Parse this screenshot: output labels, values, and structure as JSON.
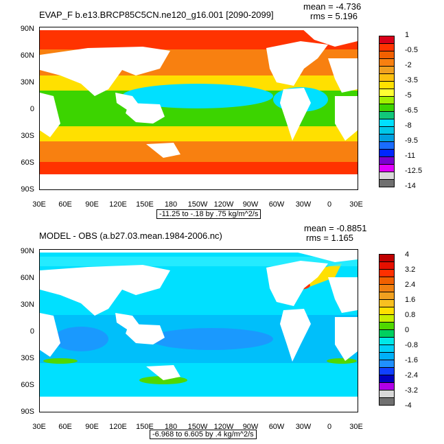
{
  "panels": [
    {
      "title": "EVAP_F b.e13.BRCP85C5CN.ne120_g16.001 [2090-2099]",
      "mean": "mean = -4.736",
      "rms": "rms = 5.196",
      "info": "-11.25 to -.18 by .75 kg/m^2/s",
      "lat_ticks": [
        "90N",
        "60N",
        "30N",
        "0",
        "30S",
        "60S",
        "90S"
      ],
      "lon_ticks": [
        "30E",
        "60E",
        "90E",
        "120E",
        "150E",
        "180",
        "150W",
        "120W",
        "90W",
        "60W",
        "30W",
        "0",
        "30E"
      ],
      "colorbar_labels": [
        "1",
        "-0.5",
        "-2",
        "-3.5",
        "-5",
        "-6.5",
        "-8",
        "-9.5",
        "-11",
        "-12.5",
        "-14"
      ],
      "colorbar_colors": [
        "#d9001a",
        "#ff3300",
        "#f26000",
        "#f88010",
        "#f0a020",
        "#fcc010",
        "#ffe000",
        "#ffff33",
        "#9fef00",
        "#3cd400",
        "#11c77a",
        "#00e0ff",
        "#00c8e8",
        "#00a0e0",
        "#1a6cff",
        "#0026ff",
        "#7a00d0",
        "#e000ff",
        "#d9d9d9",
        "#6f6f6f"
      ]
    },
    {
      "title": "MODEL - OBS (a.b27.03.mean.1984-2006.nc)",
      "mean": "mean = -0.8851",
      "rms": "rms = 1.165",
      "info": "-6.968 to 6.605 by .4 kg/m^2/s",
      "lat_ticks": [
        "90N",
        "60N",
        "30N",
        "0",
        "30S",
        "60S",
        "90S"
      ],
      "lon_ticks": [
        "30E",
        "60E",
        "90E",
        "120E",
        "150E",
        "180",
        "150W",
        "120W",
        "90W",
        "60W",
        "30W",
        "0",
        "30E"
      ],
      "colorbar_labels": [
        "4",
        "3.2",
        "2.4",
        "1.6",
        "0.8",
        "0",
        "-0.8",
        "-1.6",
        "-2.4",
        "-3.2",
        "-4"
      ],
      "colorbar_colors": [
        "#c00000",
        "#e61000",
        "#ff3000",
        "#f06000",
        "#f08010",
        "#f0a020",
        "#f8c020",
        "#ffe000",
        "#c8f000",
        "#50d800",
        "#00d060",
        "#00e8e8",
        "#00d0f8",
        "#00b0f8",
        "#2090ff",
        "#1040ff",
        "#0000c0",
        "#b000e8",
        "#d8d8d8",
        "#707070"
      ]
    }
  ],
  "map_colors": {
    "land": "#ffffff",
    "top_polar": "#ff3300",
    "top_sub": "#f88010",
    "top_mid": "#ffe000",
    "top_trop": "#3cd400",
    "top_eq": "#00e0ff",
    "top_core": "#11c77a",
    "bot_base": "#00e0ff",
    "bot_light": "#33f0ff",
    "bot_dark": "#00b0f8",
    "bot_deep": "#2090ff",
    "bot_green": "#50d800",
    "bot_yellow": "#ffe000",
    "bot_red": "#ff3000"
  }
}
